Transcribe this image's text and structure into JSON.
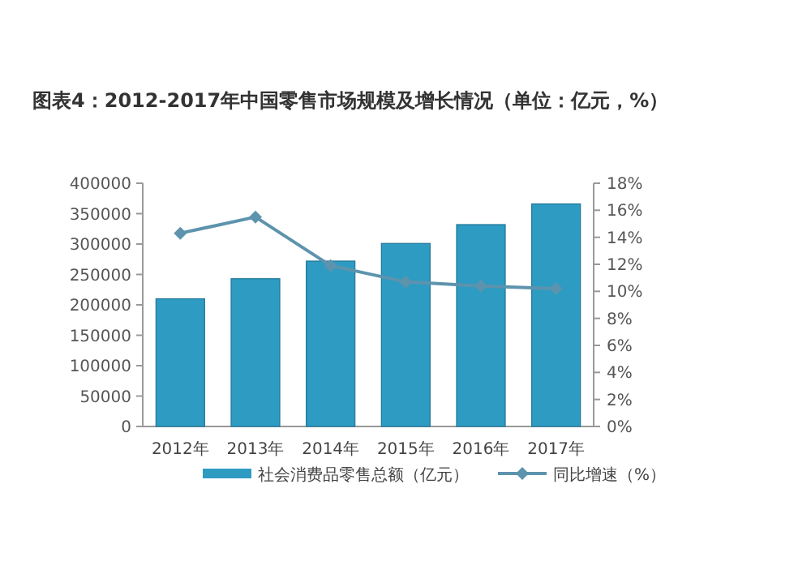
{
  "chart_data": {
    "type": "bar",
    "title": "图表4：2012-2017年中国零售市场规模及增长情况（单位：亿元，%）",
    "categories": [
      "2012年",
      "2013年",
      "2014年",
      "2015年",
      "2016年",
      "2017年"
    ],
    "series": [
      {
        "name": "社会消费品零售总额（亿元）",
        "color": "#2e9bc2",
        "values": [
          210000,
          243000,
          272000,
          301000,
          332000,
          366000
        ]
      },
      {
        "name": "同比增速（%）",
        "type": "line",
        "axis": "y2",
        "color": "#5d93ad",
        "marker": "diamond",
        "values": [
          14.3,
          15.5,
          11.9,
          10.7,
          10.4,
          10.2
        ]
      }
    ],
    "ylim": [
      0,
      400000
    ],
    "yticks": [
      0,
      50000,
      100000,
      150000,
      200000,
      250000,
      300000,
      350000,
      400000
    ],
    "y2lim": [
      0,
      18
    ],
    "y2ticks": [
      {
        "value": 0,
        "label": "0%"
      },
      {
        "value": 2,
        "label": "2%"
      },
      {
        "value": 4,
        "label": "4%"
      },
      {
        "value": 6,
        "label": "6%"
      },
      {
        "value": 8,
        "label": "8%"
      },
      {
        "value": 10,
        "label": "10%"
      },
      {
        "value": 12,
        "label": "12%"
      },
      {
        "value": 14,
        "label": "14%"
      },
      {
        "value": 16,
        "label": "16%"
      },
      {
        "value": 18,
        "label": "18%"
      }
    ],
    "legend": "bottom"
  }
}
